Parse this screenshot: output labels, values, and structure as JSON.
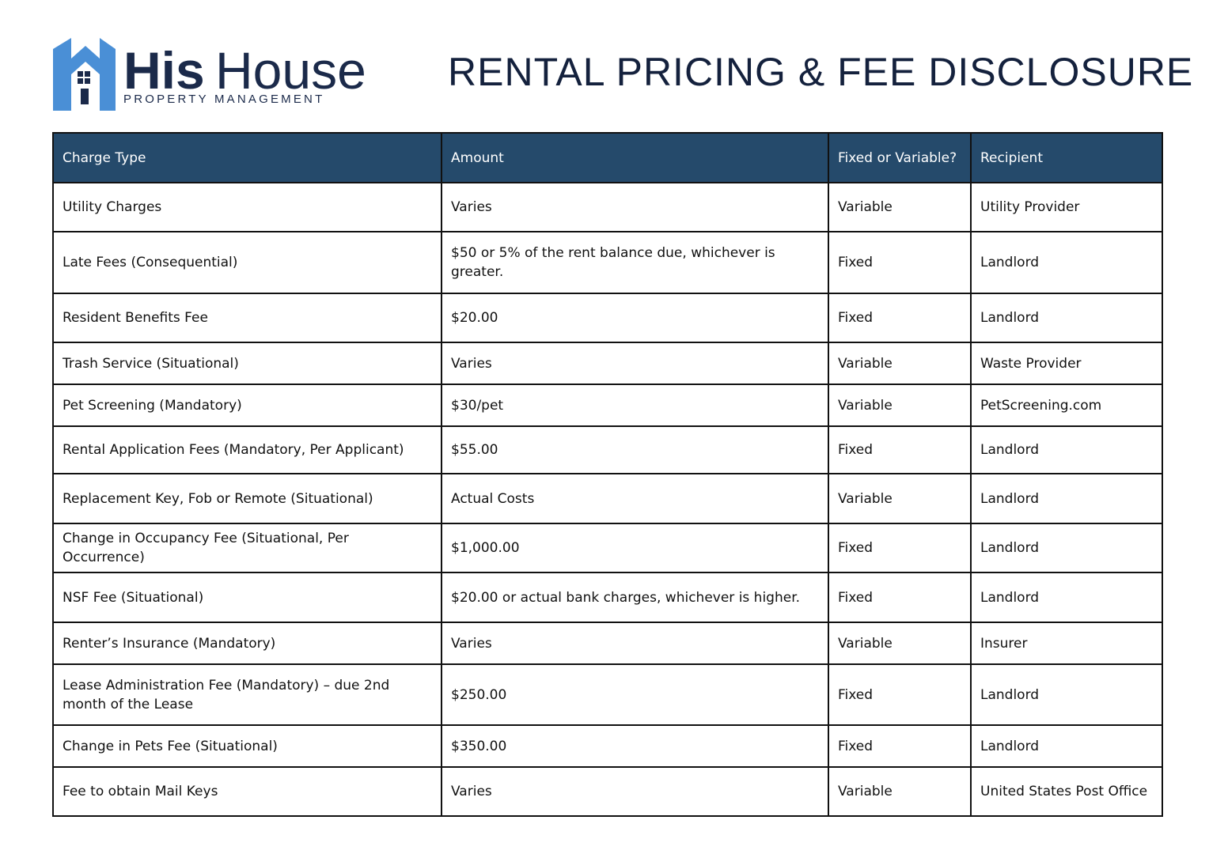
{
  "header": {
    "logo": {
      "name_bold": "His",
      "name_light": "House",
      "tagline": "PROPERTY MANAGEMENT"
    },
    "title": "RENTAL PRICING & FEE DISCLOSURE"
  },
  "table": {
    "columns": [
      "Charge Type",
      "Amount",
      "Fixed or Variable?",
      "Recipient"
    ],
    "rows": [
      [
        "Utility Charges",
        "Varies",
        "Variable",
        "Utility Provider"
      ],
      [
        "Late Fees (Consequential)",
        "$50 or 5% of the rent balance due, whichever is greater.",
        "Fixed",
        "Landlord"
      ],
      [
        "Resident Benefits Fee",
        "$20.00",
        "Fixed",
        "Landlord"
      ],
      [
        "Trash Service (Situational)",
        "Varies",
        "Variable",
        "Waste Provider"
      ],
      [
        "Pet Screening (Mandatory)",
        "$30/pet",
        "Variable",
        "PetScreening.com"
      ],
      [
        "Rental Application Fees (Mandatory, Per Applicant)",
        "$55.00",
        "Fixed",
        "Landlord"
      ],
      [
        "Replacement Key, Fob or Remote (Situational)",
        "Actual Costs",
        "Variable",
        "Landlord"
      ],
      [
        "Change in Occupancy Fee (Situational, Per Occurrence)",
        "$1,000.00",
        "Fixed",
        "Landlord"
      ],
      [
        "NSF Fee (Situational)",
        "$20.00 or actual bank charges, whichever is higher.",
        "Fixed",
        "Landlord"
      ],
      [
        "Renter’s Insurance (Mandatory)",
        "Varies",
        "Variable",
        "Insurer"
      ],
      [
        "Lease Administration Fee (Mandatory) – due 2nd month of the Lease",
        "$250.00",
        "Fixed",
        "Landlord"
      ],
      [
        "Change in Pets Fee (Situational)",
        "$350.00",
        "Fixed",
        "Landlord"
      ],
      [
        "Fee to obtain Mail Keys",
        "Varies",
        "Variable",
        "United States Post Office"
      ]
    ]
  }
}
